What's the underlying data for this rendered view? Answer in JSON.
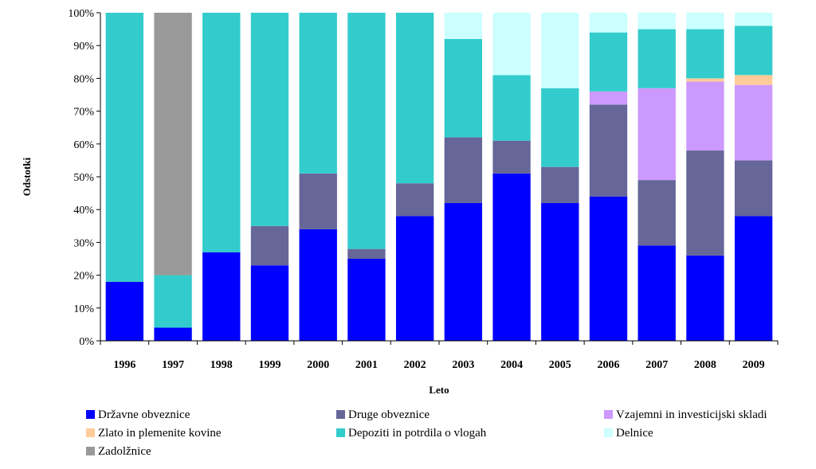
{
  "chart_data": {
    "type": "bar",
    "stacked": true,
    "title": "",
    "xlabel": "Leto",
    "ylabel": "Odstotki",
    "ylim": [
      0,
      100
    ],
    "yticks": [
      "0%",
      "10%",
      "20%",
      "30%",
      "40%",
      "50%",
      "60%",
      "70%",
      "80%",
      "90%",
      "100%"
    ],
    "categories": [
      "1996",
      "1997",
      "1998",
      "1999",
      "2000",
      "2001",
      "2002",
      "2003",
      "2004",
      "2005",
      "2006",
      "2007",
      "2008",
      "2009"
    ],
    "series": [
      {
        "name": "Državne obveznice",
        "color": "#0000ff",
        "values": [
          18,
          4,
          27,
          23,
          34,
          25,
          38,
          42,
          51,
          42,
          44,
          29,
          26,
          38
        ]
      },
      {
        "name": "Druge obveznice",
        "color": "#666699",
        "values": [
          0,
          0,
          0,
          12,
          17,
          3,
          10,
          20,
          10,
          11,
          28,
          20,
          32,
          17
        ]
      },
      {
        "name": "Vzajemni in investicijski skladi",
        "color": "#cc99ff",
        "values": [
          0,
          0,
          0,
          0,
          0,
          0,
          0,
          0,
          0,
          0,
          4,
          28,
          21,
          23
        ]
      },
      {
        "name": "Zlato in plemenite kovine",
        "color": "#ffcc99",
        "values": [
          0,
          0,
          0,
          0,
          0,
          0,
          0,
          0,
          0,
          0,
          0,
          0,
          1,
          3
        ]
      },
      {
        "name": "Depoziti in potrdila o vlogah",
        "color": "#33cccc",
        "values": [
          82,
          16,
          73,
          65,
          49,
          72,
          52,
          30,
          20,
          24,
          18,
          18,
          15,
          15
        ]
      },
      {
        "name": "Delnice",
        "color": "#ccffff",
        "values": [
          0,
          0,
          0,
          0,
          0,
          0,
          0,
          8,
          19,
          23,
          6,
          5,
          5,
          4
        ]
      },
      {
        "name": "Zadolžnice",
        "color": "#999999",
        "values": [
          0,
          80,
          0,
          0,
          0,
          0,
          0,
          0,
          0,
          0,
          0,
          0,
          0,
          0
        ]
      }
    ],
    "legend": {
      "position": "bottom",
      "rows": [
        [
          "Državne obveznice",
          "Druge obveznice",
          "Vzajemni in investicijski skladi"
        ],
        [
          "Zlato in plemenite kovine",
          "Depoziti in potrdila o vlogah",
          "Delnice"
        ],
        [
          "Zadolžnice"
        ]
      ]
    },
    "grid": false
  }
}
